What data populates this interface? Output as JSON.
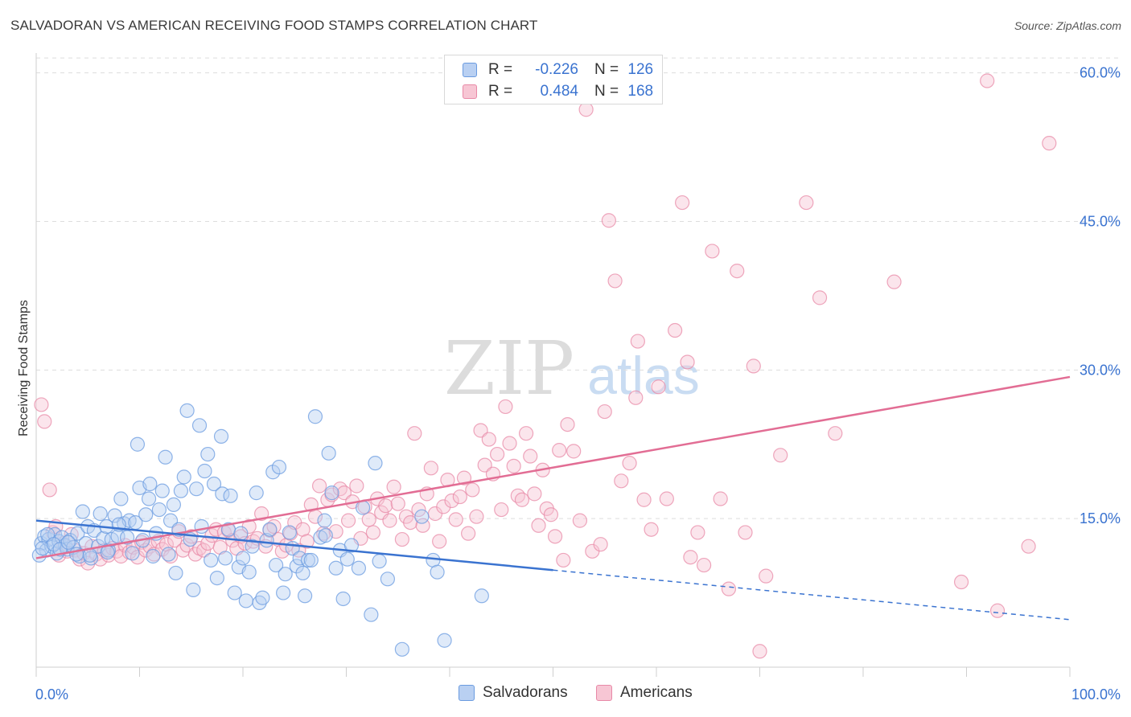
{
  "title": "SALVADORAN VS AMERICAN RECEIVING FOOD STAMPS CORRELATION CHART",
  "source": "Source: ZipAtlas.com",
  "watermark": {
    "zip": "ZIP",
    "atlas": "atlas"
  },
  "legend": {
    "rows": [
      {
        "r_label": "R =",
        "r_value": "-0.226",
        "n_label": "N =",
        "n_value": "126",
        "color": "#6a9be0",
        "fill": "#b9d0f2"
      },
      {
        "r_label": "R =",
        "r_value": "0.484",
        "n_label": "N =",
        "n_value": "168",
        "color": "#e889a7",
        "fill": "#f7c6d4"
      }
    ],
    "bottom": [
      {
        "label": "Salvadorans",
        "color": "#6a9be0",
        "fill": "#b9d0f2"
      },
      {
        "label": "Americans",
        "color": "#e889a7",
        "fill": "#f7c6d4"
      }
    ]
  },
  "chart_data": {
    "type": "scatter",
    "title": "SALVADORAN VS AMERICAN RECEIVING FOOD STAMPS CORRELATION CHART",
    "xlabel": "",
    "ylabel": "Receiving Food Stamps",
    "xlim": [
      0,
      100
    ],
    "ylim": [
      0,
      62
    ],
    "x_tick_labels": [
      "0.0%",
      "100.0%"
    ],
    "y_ticks": [
      15,
      30,
      45,
      60
    ],
    "y_tick_labels": [
      "15.0%",
      "30.0%",
      "45.0%",
      "60.0%"
    ],
    "grid": true,
    "colors": {
      "blue": "#3a73d0",
      "pink": "#e26d94"
    },
    "series": [
      {
        "name": "Salvadorans",
        "stroke": "#6a9be0",
        "fill": "#b9d0f2",
        "trend": {
          "x0": 0,
          "y0": 14.8,
          "x1": 50,
          "y1": 9.8,
          "dash_x1": 100,
          "dash_y1": 4.8
        },
        "points": [
          [
            0.5,
            12.5
          ],
          [
            0.8,
            13.2
          ],
          [
            1,
            11.8
          ],
          [
            1.2,
            12.9
          ],
          [
            1.5,
            12.2
          ],
          [
            1.8,
            13.4
          ],
          [
            2,
            11.5
          ],
          [
            2.2,
            12.7
          ],
          [
            2.5,
            13.1
          ],
          [
            2.8,
            12.3
          ],
          [
            3,
            11.9
          ],
          [
            3.3,
            12.8
          ],
          [
            3.6,
            12.1
          ],
          [
            4,
            13.5
          ],
          [
            4.2,
            11.2
          ],
          [
            4.5,
            15.7
          ],
          [
            4.8,
            12.5
          ],
          [
            5,
            14.2
          ],
          [
            5.3,
            11.0
          ],
          [
            5.6,
            13.8
          ],
          [
            6,
            12.2
          ],
          [
            6.2,
            15.5
          ],
          [
            6.5,
            13.0
          ],
          [
            6.8,
            14.2
          ],
          [
            7,
            11.8
          ],
          [
            7.3,
            12.9
          ],
          [
            7.6,
            15.3
          ],
          [
            7.9,
            13.2
          ],
          [
            8.2,
            17.0
          ],
          [
            8.5,
            14.5
          ],
          [
            8.8,
            13.1
          ],
          [
            9,
            14.8
          ],
          [
            9.3,
            11.5
          ],
          [
            9.6,
            14.6
          ],
          [
            9.8,
            22.5
          ],
          [
            10,
            18.1
          ],
          [
            10.3,
            12.8
          ],
          [
            10.6,
            15.4
          ],
          [
            10.9,
            17.0
          ],
          [
            11,
            18.5
          ],
          [
            11.3,
            11.2
          ],
          [
            11.6,
            13.5
          ],
          [
            11.9,
            15.9
          ],
          [
            12.2,
            17.8
          ],
          [
            12.5,
            21.2
          ],
          [
            12.8,
            11.4
          ],
          [
            13,
            14.8
          ],
          [
            13.3,
            16.4
          ],
          [
            13.5,
            9.5
          ],
          [
            13.8,
            13.9
          ],
          [
            14,
            17.8
          ],
          [
            14.3,
            19.2
          ],
          [
            14.6,
            25.9
          ],
          [
            14.9,
            12.9
          ],
          [
            15.2,
            7.8
          ],
          [
            15.5,
            18.0
          ],
          [
            15.8,
            24.4
          ],
          [
            16,
            14.2
          ],
          [
            16.3,
            19.8
          ],
          [
            16.6,
            21.5
          ],
          [
            16.9,
            10.8
          ],
          [
            17.2,
            18.5
          ],
          [
            17.5,
            9.0
          ],
          [
            17.9,
            23.3
          ],
          [
            18,
            17.5
          ],
          [
            18.3,
            11.0
          ],
          [
            18.6,
            13.9
          ],
          [
            18.8,
            17.3
          ],
          [
            19.2,
            7.5
          ],
          [
            19.6,
            10.1
          ],
          [
            19.8,
            13.5
          ],
          [
            20,
            11.0
          ],
          [
            20.3,
            6.7
          ],
          [
            20.6,
            9.6
          ],
          [
            20.9,
            12.2
          ],
          [
            21.3,
            17.6
          ],
          [
            21.6,
            6.5
          ],
          [
            21.9,
            7.0
          ],
          [
            22.3,
            12.8
          ],
          [
            22.6,
            13.9
          ],
          [
            22.9,
            19.7
          ],
          [
            23.2,
            10.3
          ],
          [
            23.5,
            20.2
          ],
          [
            23.9,
            7.5
          ],
          [
            24.1,
            9.4
          ],
          [
            24.5,
            13.6
          ],
          [
            24.8,
            12.0
          ],
          [
            25.2,
            10.2
          ],
          [
            25.5,
            11.0
          ],
          [
            25.8,
            9.5
          ],
          [
            26,
            7.2
          ],
          [
            26.3,
            10.8
          ],
          [
            26.6,
            10.8
          ],
          [
            27,
            25.3
          ],
          [
            27.5,
            13.1
          ],
          [
            27.9,
            14.8
          ],
          [
            28,
            13.3
          ],
          [
            28.3,
            21.6
          ],
          [
            28.6,
            17.6
          ],
          [
            29,
            10.0
          ],
          [
            29.4,
            11.8
          ],
          [
            29.7,
            6.9
          ],
          [
            30.1,
            10.9
          ],
          [
            30.5,
            12.3
          ],
          [
            31.2,
            10.0
          ],
          [
            31.6,
            16.1
          ],
          [
            32.4,
            5.3
          ],
          [
            32.8,
            20.6
          ],
          [
            33.2,
            10.7
          ],
          [
            34,
            8.9
          ],
          [
            35.4,
            1.8
          ],
          [
            37.3,
            15.2
          ],
          [
            38.4,
            10.8
          ],
          [
            38.8,
            9.6
          ],
          [
            39.5,
            2.7
          ],
          [
            43.1,
            7.2
          ],
          [
            0.3,
            11.3
          ],
          [
            0.6,
            12.0
          ],
          [
            1.1,
            13.4
          ],
          [
            1.7,
            12.4
          ],
          [
            2.3,
            11.9
          ],
          [
            3.1,
            12.6
          ],
          [
            3.9,
            11.4
          ],
          [
            5.2,
            11.3
          ],
          [
            6.9,
            11.6
          ],
          [
            8,
            14.4
          ]
        ]
      },
      {
        "name": "Americans",
        "stroke": "#e889a7",
        "fill": "#f7c6d4",
        "trend": {
          "x0": 0,
          "y0": 11.0,
          "x1": 100,
          "y1": 29.3
        },
        "points": [
          [
            0.5,
            26.5
          ],
          [
            0.8,
            24.8
          ],
          [
            1.3,
            17.9
          ],
          [
            1.6,
            13.6
          ],
          [
            1.9,
            14.2
          ],
          [
            2.2,
            11.3
          ],
          [
            2.6,
            12.5
          ],
          [
            3,
            11.7
          ],
          [
            3.4,
            13.4
          ],
          [
            3.8,
            11.8
          ],
          [
            4.2,
            10.9
          ],
          [
            4.6,
            11.5
          ],
          [
            5,
            10.5
          ],
          [
            5.4,
            12.2
          ],
          [
            5.8,
            11.4
          ],
          [
            6.2,
            10.9
          ],
          [
            6.6,
            11.8
          ],
          [
            7,
            11.3
          ],
          [
            7.4,
            12.0
          ],
          [
            7.8,
            11.7
          ],
          [
            8.2,
            11.2
          ],
          [
            8.6,
            12.3
          ],
          [
            9,
            11.6
          ],
          [
            9.4,
            12.1
          ],
          [
            9.8,
            11.1
          ],
          [
            10.2,
            12.6
          ],
          [
            10.6,
            11.8
          ],
          [
            11,
            12.2
          ],
          [
            11.4,
            11.4
          ],
          [
            11.8,
            12.7
          ],
          [
            12.2,
            11.9
          ],
          [
            12.6,
            12.4
          ],
          [
            13,
            11.2
          ],
          [
            13.4,
            12.8
          ],
          [
            13.8,
            13.7
          ],
          [
            14.2,
            11.8
          ],
          [
            14.6,
            12.3
          ],
          [
            15,
            13.2
          ],
          [
            15.4,
            11.4
          ],
          [
            15.8,
            12.0
          ],
          [
            16.2,
            11.8
          ],
          [
            16.6,
            12.5
          ],
          [
            17,
            13.3
          ],
          [
            17.4,
            13.9
          ],
          [
            17.8,
            12.1
          ],
          [
            18.2,
            13.6
          ],
          [
            18.6,
            13.8
          ],
          [
            19,
            12.8
          ],
          [
            19.4,
            12.0
          ],
          [
            19.8,
            13.2
          ],
          [
            20.2,
            12.5
          ],
          [
            20.6,
            14.2
          ],
          [
            21,
            12.7
          ],
          [
            21.4,
            13.0
          ],
          [
            21.8,
            15.5
          ],
          [
            22.2,
            12.2
          ],
          [
            22.6,
            13.8
          ],
          [
            23,
            14.2
          ],
          [
            23.4,
            12.9
          ],
          [
            23.8,
            11.7
          ],
          [
            24.2,
            12.3
          ],
          [
            24.6,
            13.5
          ],
          [
            25,
            14.6
          ],
          [
            25.4,
            11.8
          ],
          [
            25.8,
            13.9
          ],
          [
            26.2,
            12.7
          ],
          [
            26.6,
            16.4
          ],
          [
            27,
            15.2
          ],
          [
            27.4,
            18.3
          ],
          [
            27.8,
            13.5
          ],
          [
            28.2,
            16.9
          ],
          [
            28.6,
            17.4
          ],
          [
            29,
            13.7
          ],
          [
            29.4,
            18.0
          ],
          [
            29.8,
            17.6
          ],
          [
            30.2,
            14.8
          ],
          [
            30.6,
            16.7
          ],
          [
            31,
            18.3
          ],
          [
            31.4,
            13.0
          ],
          [
            31.8,
            16.2
          ],
          [
            32.2,
            14.9
          ],
          [
            32.6,
            13.6
          ],
          [
            33,
            17.0
          ],
          [
            33.4,
            15.6
          ],
          [
            33.8,
            16.3
          ],
          [
            34.2,
            14.8
          ],
          [
            34.6,
            18.2
          ],
          [
            35,
            16.5
          ],
          [
            35.4,
            12.9
          ],
          [
            35.8,
            15.2
          ],
          [
            36.2,
            14.6
          ],
          [
            36.6,
            23.6
          ],
          [
            37,
            15.9
          ],
          [
            37.4,
            14.3
          ],
          [
            37.8,
            17.5
          ],
          [
            38.2,
            20.1
          ],
          [
            38.6,
            15.5
          ],
          [
            39,
            12.7
          ],
          [
            39.4,
            16.2
          ],
          [
            39.8,
            18.9
          ],
          [
            40.2,
            16.8
          ],
          [
            40.6,
            14.9
          ],
          [
            41,
            17.2
          ],
          [
            41.4,
            19.1
          ],
          [
            41.8,
            13.5
          ],
          [
            42.2,
            17.9
          ],
          [
            42.6,
            15.2
          ],
          [
            43,
            23.9
          ],
          [
            43.4,
            20.4
          ],
          [
            43.8,
            23.0
          ],
          [
            44.2,
            19.5
          ],
          [
            44.6,
            21.5
          ],
          [
            45,
            15.9
          ],
          [
            45.4,
            26.3
          ],
          [
            45.8,
            22.6
          ],
          [
            46.2,
            20.3
          ],
          [
            46.6,
            17.3
          ],
          [
            47,
            16.9
          ],
          [
            47.4,
            23.6
          ],
          [
            47.8,
            21.3
          ],
          [
            48.2,
            17.5
          ],
          [
            48.6,
            14.3
          ],
          [
            49,
            19.9
          ],
          [
            49.4,
            16.0
          ],
          [
            49.8,
            15.4
          ],
          [
            50.2,
            13.2
          ],
          [
            50.6,
            21.9
          ],
          [
            51,
            10.8
          ],
          [
            51.4,
            24.5
          ],
          [
            52,
            21.8
          ],
          [
            52.6,
            14.8
          ],
          [
            53.2,
            56.3
          ],
          [
            53.8,
            11.7
          ],
          [
            54.6,
            12.4
          ],
          [
            55.4,
            45.1
          ],
          [
            56,
            39.0
          ],
          [
            56.6,
            18.8
          ],
          [
            57.4,
            20.6
          ],
          [
            58,
            27.2
          ],
          [
            58.8,
            16.9
          ],
          [
            59.5,
            13.9
          ],
          [
            60.2,
            28.3
          ],
          [
            61,
            17.0
          ],
          [
            61.8,
            34.0
          ],
          [
            62.5,
            46.9
          ],
          [
            63.3,
            11.1
          ],
          [
            64,
            13.6
          ],
          [
            64.6,
            10.3
          ],
          [
            65.4,
            42.0
          ],
          [
            66.2,
            17.0
          ],
          [
            67,
            7.9
          ],
          [
            67.8,
            40.0
          ],
          [
            68.6,
            13.6
          ],
          [
            69.4,
            30.4
          ],
          [
            70,
            1.6
          ],
          [
            72,
            21.4
          ],
          [
            74.5,
            46.9
          ],
          [
            75.8,
            37.3
          ],
          [
            77.3,
            23.6
          ],
          [
            83,
            38.9
          ],
          [
            89.5,
            8.6
          ],
          [
            92,
            59.2
          ],
          [
            93,
            5.7
          ],
          [
            96,
            12.2
          ],
          [
            98,
            52.9
          ],
          [
            55,
            25.8
          ],
          [
            58.2,
            32.9
          ],
          [
            63,
            30.8
          ],
          [
            70.6,
            9.2
          ]
        ]
      }
    ]
  }
}
